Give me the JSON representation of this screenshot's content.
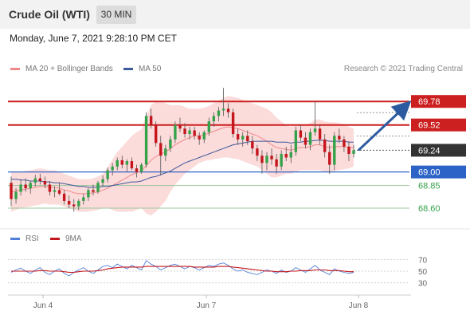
{
  "header": {
    "title": "Crude Oil (WTI)",
    "timeframe": "30 MIN",
    "datetime": "Monday, June 7, 2021 9:28:10 PM CET"
  },
  "attribution": "Research © 2021 Trading Central",
  "colors": {
    "up": "#35a24a",
    "down": "#c4161c",
    "resistance": "#cc1f1f",
    "support": "#2b63c6",
    "ma20": "#f08a8a",
    "band": "#fcd5d5",
    "ma50": "#3c5a9a",
    "rsi": "#4f7fd6",
    "rsi_ma": "#c4161c",
    "arrow": "#2b5aa0",
    "last": "#333333"
  },
  "chart_data": [
    {
      "type": "candlestick",
      "legend": [
        "MA 20 + Bollinger Bands",
        "MA 50"
      ],
      "ylim": [
        68.45,
        70.02
      ],
      "levels": [
        {
          "value": 69.78,
          "label": "69.78",
          "kind": "resistance"
        },
        {
          "value": 69.52,
          "label": "69.52",
          "kind": "resistance"
        },
        {
          "value": 69.24,
          "label": "69.24",
          "kind": "last"
        },
        {
          "value": 69.0,
          "label": "69.00",
          "kind": "support"
        },
        {
          "value": 68.85,
          "label": "68.85",
          "kind": "target"
        },
        {
          "value": 68.6,
          "label": "68.60",
          "kind": "target"
        }
      ],
      "forecast_arrow": {
        "from": 69.24,
        "to": 69.78
      },
      "x_labels": [
        "Jun 4",
        "Jun 7",
        "Jun 8"
      ],
      "candles": [
        [
          68.88,
          68.95,
          68.62,
          68.7
        ],
        [
          68.7,
          68.82,
          68.65,
          68.78
        ],
        [
          68.78,
          68.92,
          68.74,
          68.86
        ],
        [
          68.86,
          68.93,
          68.78,
          68.82
        ],
        [
          68.82,
          68.9,
          68.76,
          68.88
        ],
        [
          68.88,
          68.97,
          68.84,
          68.93
        ],
        [
          68.93,
          68.98,
          68.86,
          68.9
        ],
        [
          68.9,
          68.95,
          68.82,
          68.86
        ],
        [
          68.86,
          68.9,
          68.74,
          68.78
        ],
        [
          68.78,
          68.84,
          68.72,
          68.8
        ],
        [
          68.8,
          68.88,
          68.74,
          68.76
        ],
        [
          68.76,
          68.8,
          68.64,
          68.68
        ],
        [
          68.68,
          68.74,
          68.6,
          68.64
        ],
        [
          68.64,
          68.7,
          68.56,
          68.62
        ],
        [
          68.62,
          68.7,
          68.58,
          68.68
        ],
        [
          68.68,
          68.76,
          68.64,
          68.72
        ],
        [
          68.72,
          68.82,
          68.68,
          68.8
        ],
        [
          68.8,
          68.86,
          68.74,
          68.78
        ],
        [
          68.78,
          68.9,
          68.76,
          68.88
        ],
        [
          68.88,
          68.96,
          68.84,
          68.92
        ],
        [
          68.92,
          69.05,
          68.88,
          69.02
        ],
        [
          69.02,
          69.1,
          68.96,
          69.06
        ],
        [
          69.06,
          69.16,
          69.02,
          69.13
        ],
        [
          69.13,
          69.18,
          69.04,
          69.08
        ],
        [
          69.08,
          69.14,
          69.0,
          69.12
        ],
        [
          69.12,
          69.16,
          69.02,
          69.04
        ],
        [
          69.04,
          69.08,
          68.94,
          69.0
        ],
        [
          69.0,
          69.1,
          68.98,
          69.08
        ],
        [
          69.08,
          69.66,
          69.05,
          69.62
        ],
        [
          69.62,
          69.7,
          69.48,
          69.52
        ],
        [
          69.52,
          69.56,
          69.28,
          69.32
        ],
        [
          69.32,
          69.4,
          68.96,
          69.18
        ],
        [
          69.18,
          69.3,
          69.12,
          69.26
        ],
        [
          69.26,
          69.4,
          69.22,
          69.36
        ],
        [
          69.36,
          69.56,
          69.32,
          69.52
        ],
        [
          69.52,
          69.6,
          69.44,
          69.48
        ],
        [
          69.48,
          69.54,
          69.38,
          69.42
        ],
        [
          69.42,
          69.5,
          69.36,
          69.46
        ],
        [
          69.46,
          69.5,
          69.36,
          69.4
        ],
        [
          69.4,
          69.44,
          69.3,
          69.36
        ],
        [
          69.36,
          69.46,
          69.32,
          69.44
        ],
        [
          69.44,
          69.6,
          69.4,
          69.56
        ],
        [
          69.56,
          69.66,
          69.5,
          69.62
        ],
        [
          69.62,
          69.72,
          69.56,
          69.68
        ],
        [
          69.68,
          69.93,
          69.62,
          69.7
        ],
        [
          69.7,
          69.76,
          69.6,
          69.66
        ],
        [
          69.66,
          69.7,
          69.38,
          69.42
        ],
        [
          69.42,
          69.48,
          69.3,
          69.36
        ],
        [
          69.36,
          69.44,
          69.28,
          69.4
        ],
        [
          69.4,
          69.46,
          69.3,
          69.34
        ],
        [
          69.34,
          69.4,
          69.2,
          69.26
        ],
        [
          69.26,
          69.3,
          69.12,
          69.18
        ],
        [
          69.18,
          69.24,
          68.98,
          69.1
        ],
        [
          69.1,
          69.22,
          69.02,
          69.18
        ],
        [
          69.18,
          69.26,
          69.08,
          69.14
        ],
        [
          69.14,
          69.2,
          68.98,
          69.06
        ],
        [
          69.06,
          69.24,
          69.02,
          69.2
        ],
        [
          69.2,
          69.28,
          69.12,
          69.16
        ],
        [
          69.16,
          69.3,
          69.1,
          69.22
        ],
        [
          69.22,
          69.5,
          69.18,
          69.46
        ],
        [
          69.46,
          69.52,
          69.34,
          69.38
        ],
        [
          69.38,
          69.44,
          69.26,
          69.3
        ],
        [
          69.3,
          69.48,
          69.24,
          69.44
        ],
        [
          69.44,
          69.78,
          69.4,
          69.48
        ],
        [
          69.48,
          69.52,
          69.3,
          69.36
        ],
        [
          69.36,
          69.42,
          69.16,
          69.22
        ],
        [
          69.22,
          69.3,
          68.98,
          69.08
        ],
        [
          69.08,
          69.44,
          69.02,
          69.4
        ],
        [
          69.4,
          69.48,
          69.32,
          69.36
        ],
        [
          69.36,
          69.4,
          69.22,
          69.28
        ],
        [
          69.28,
          69.34,
          69.12,
          69.2
        ],
        [
          69.2,
          69.3,
          69.16,
          69.24
        ]
      ],
      "ma20": [
        68.78,
        68.79,
        68.8,
        68.81,
        68.82,
        68.83,
        68.84,
        68.84,
        68.83,
        68.83,
        68.82,
        68.8,
        68.79,
        68.77,
        68.76,
        68.76,
        68.76,
        68.77,
        68.78,
        68.8,
        68.82,
        68.85,
        68.88,
        68.91,
        68.94,
        68.97,
        68.99,
        69.01,
        69.07,
        69.13,
        69.17,
        69.2,
        69.22,
        69.26,
        69.3,
        69.33,
        69.36,
        69.38,
        69.4,
        69.4,
        69.41,
        69.43,
        69.45,
        69.47,
        69.49,
        69.5,
        69.49,
        69.48,
        69.46,
        69.44,
        69.42,
        69.4,
        69.37,
        69.34,
        69.3,
        69.27,
        69.26,
        69.25,
        69.24,
        69.26,
        69.27,
        69.27,
        69.28,
        69.3,
        69.3,
        69.28,
        69.27,
        69.28,
        69.28,
        69.28,
        69.27,
        69.27
      ],
      "band_upper": [
        69.0,
        69.0,
        69.0,
        69.01,
        69.02,
        69.03,
        69.04,
        69.03,
        69.02,
        69.02,
        69.0,
        68.98,
        68.96,
        68.94,
        68.92,
        68.92,
        68.92,
        68.93,
        68.95,
        68.98,
        69.05,
        69.14,
        69.22,
        69.28,
        69.34,
        69.4,
        69.44,
        69.47,
        69.62,
        69.74,
        69.78,
        69.78,
        69.76,
        69.74,
        69.74,
        69.74,
        69.72,
        69.7,
        69.7,
        69.7,
        69.71,
        69.73,
        69.76,
        69.79,
        69.82,
        69.84,
        69.83,
        69.82,
        69.8,
        69.78,
        69.76,
        69.74,
        69.72,
        69.7,
        69.66,
        69.6,
        69.56,
        69.52,
        69.5,
        69.52,
        69.52,
        69.52,
        69.54,
        69.58,
        69.58,
        69.56,
        69.55,
        69.55,
        69.54,
        69.53,
        69.5,
        69.48
      ],
      "band_lower": [
        68.56,
        68.58,
        68.6,
        68.61,
        68.62,
        68.63,
        68.64,
        68.65,
        68.64,
        68.64,
        68.64,
        68.62,
        68.6,
        68.58,
        68.56,
        68.56,
        68.56,
        68.57,
        68.58,
        68.6,
        68.6,
        68.58,
        68.56,
        68.56,
        68.56,
        68.56,
        68.58,
        68.6,
        68.54,
        68.52,
        68.56,
        68.62,
        68.68,
        68.78,
        68.86,
        68.92,
        68.98,
        69.02,
        69.06,
        69.1,
        69.12,
        69.13,
        69.14,
        69.15,
        69.16,
        69.16,
        69.15,
        69.14,
        69.12,
        69.1,
        69.08,
        69.06,
        69.02,
        68.98,
        68.94,
        68.94,
        68.96,
        68.98,
        68.98,
        69.0,
        69.02,
        69.02,
        69.02,
        69.02,
        69.02,
        69.0,
        68.99,
        69.01,
        69.02,
        69.03,
        69.04,
        69.06
      ],
      "ma50": [
        68.92,
        68.92,
        68.91,
        68.91,
        68.9,
        68.9,
        68.9,
        68.89,
        68.89,
        68.88,
        68.88,
        68.87,
        68.86,
        68.85,
        68.84,
        68.84,
        68.83,
        68.83,
        68.83,
        68.84,
        68.84,
        68.85,
        68.86,
        68.87,
        68.88,
        68.89,
        68.89,
        68.9,
        68.92,
        68.94,
        68.95,
        68.97,
        68.99,
        69.01,
        69.04,
        69.07,
        69.1,
        69.12,
        69.14,
        69.16,
        69.18,
        69.2,
        69.22,
        69.24,
        69.26,
        69.28,
        69.3,
        69.31,
        69.32,
        69.33,
        69.34,
        69.34,
        69.34,
        69.34,
        69.34,
        69.33,
        69.33,
        69.33,
        69.32,
        69.33,
        69.33,
        69.34,
        69.34,
        69.35,
        69.35,
        69.35,
        69.34,
        69.34,
        69.34,
        69.34,
        69.33,
        69.33
      ]
    },
    {
      "type": "line",
      "legend": [
        "RSI",
        "9MA"
      ],
      "ylim": [
        20,
        80
      ],
      "yticks": [
        {
          "value": 70,
          "label": "70"
        },
        {
          "value": 50,
          "label": "50"
        },
        {
          "value": 30,
          "label": "30"
        }
      ],
      "rsi": [
        48,
        52,
        55,
        50,
        46,
        52,
        56,
        48,
        44,
        50,
        54,
        46,
        42,
        48,
        52,
        56,
        50,
        46,
        52,
        58,
        60,
        56,
        62,
        58,
        54,
        60,
        56,
        52,
        68,
        62,
        58,
        52,
        56,
        60,
        62,
        58,
        54,
        58,
        56,
        52,
        56,
        60,
        58,
        62,
        64,
        60,
        54,
        50,
        52,
        48,
        46,
        44,
        48,
        52,
        50,
        46,
        52,
        48,
        50,
        56,
        52,
        48,
        54,
        60,
        52,
        48,
        44,
        54,
        50,
        48,
        46,
        48
      ],
      "ma": [
        50,
        50,
        50,
        50,
        50,
        50,
        51,
        51,
        50,
        50,
        50,
        49,
        48,
        48,
        49,
        50,
        50,
        50,
        51,
        52,
        54,
        55,
        56,
        57,
        57,
        57,
        57,
        57,
        58,
        58,
        58,
        58,
        58,
        58,
        58,
        58,
        58,
        58,
        57,
        57,
        57,
        57,
        57,
        58,
        58,
        58,
        57,
        56,
        55,
        54,
        53,
        52,
        51,
        50,
        50,
        49,
        49,
        49,
        50,
        50,
        51,
        51,
        51,
        52,
        52,
        52,
        51,
        51,
        51,
        50,
        49,
        49
      ]
    }
  ]
}
